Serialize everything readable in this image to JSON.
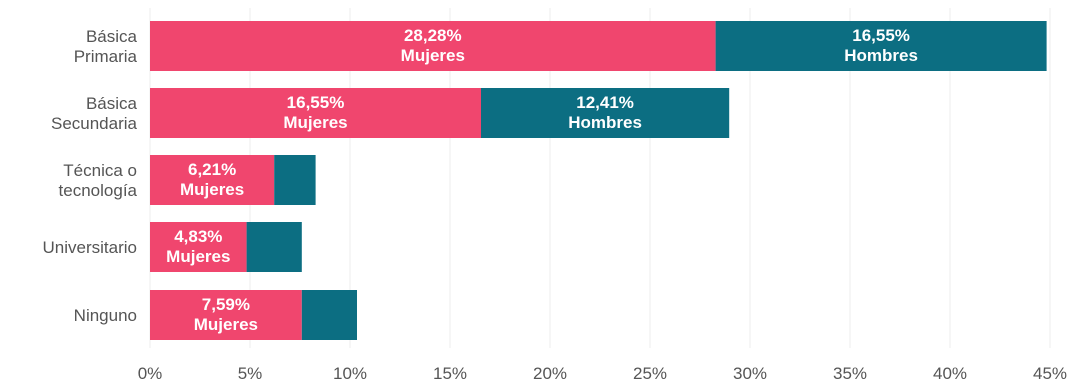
{
  "chart_data": {
    "type": "bar",
    "orientation": "horizontal",
    "stacked": true,
    "categories": [
      [
        "Básica",
        "Primaria"
      ],
      [
        "Básica",
        "Secundaria"
      ],
      [
        "Técnica o",
        "tecnología"
      ],
      [
        "Universitario"
      ],
      [
        "Ninguno"
      ]
    ],
    "series": [
      {
        "name": "Mujeres",
        "color": "#f0466e",
        "values": [
          28.28,
          16.55,
          6.21,
          4.83,
          7.59
        ],
        "labels": [
          [
            "28,28%",
            "Mujeres"
          ],
          [
            "16,55%",
            "Mujeres"
          ],
          [
            "6,21%",
            "Mujeres"
          ],
          [
            "4,83%",
            "Mujeres"
          ],
          [
            "7,59%",
            "Mujeres"
          ]
        ]
      },
      {
        "name": "Hombres",
        "color": "#0c6e82",
        "values": [
          16.55,
          12.41,
          2.07,
          2.76,
          2.76
        ],
        "labels": [
          [
            "16,55%",
            "Hombres"
          ],
          [
            "12,41%",
            "Hombres"
          ],
          null,
          null,
          null
        ]
      }
    ],
    "xlim": [
      0,
      45
    ],
    "xticks": [
      0,
      5,
      10,
      15,
      20,
      25,
      30,
      35,
      40,
      45
    ],
    "xtick_labels": [
      "0%",
      "5%",
      "10%",
      "15%",
      "20%",
      "25%",
      "30%",
      "35%",
      "40%",
      "45%"
    ],
    "grid": "vertical",
    "legend": "none"
  }
}
